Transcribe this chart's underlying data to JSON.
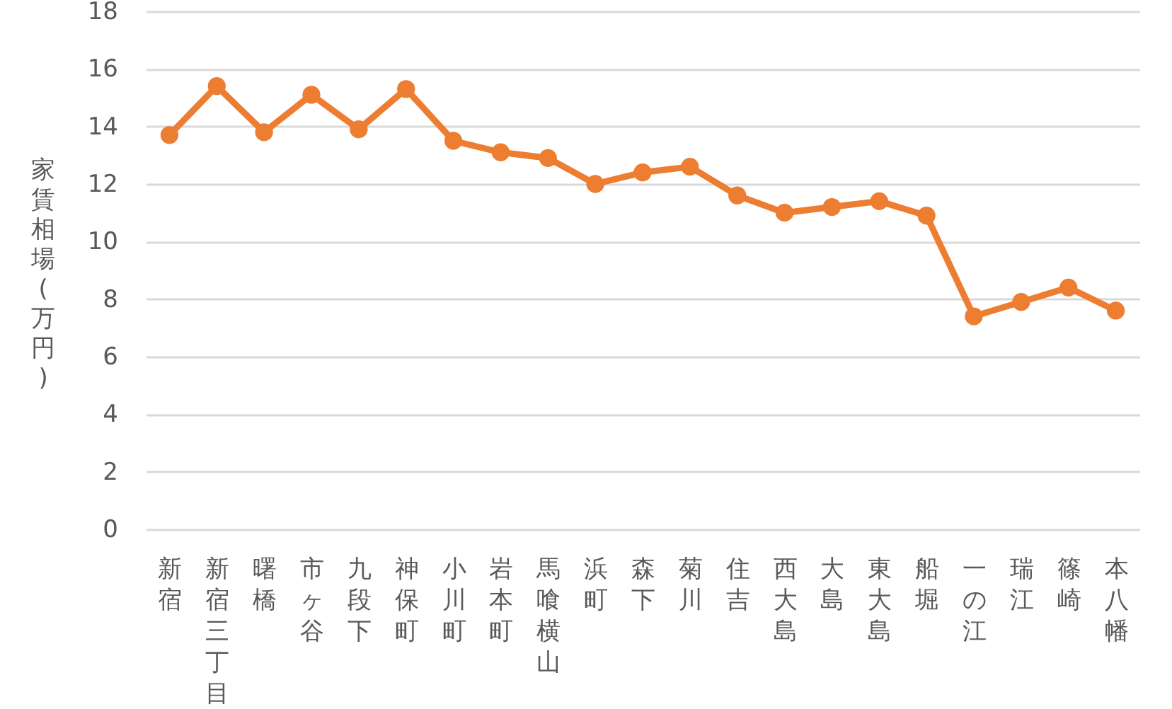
{
  "chart_data": {
    "type": "line",
    "ylabel": "家賃相場(万円)",
    "categories": [
      "新宿",
      "新宿三丁目",
      "曙橋",
      "市ヶ谷",
      "九段下",
      "神保町",
      "小川町",
      "岩本町",
      "馬喰横山",
      "浜町",
      "森下",
      "菊川",
      "住吉",
      "西大島",
      "大島",
      "東大島",
      "船堀",
      "一の江",
      "瑞江",
      "篠崎",
      "本八幡"
    ],
    "series": [
      {
        "color": "#ed7d31",
        "values": [
          13.7,
          15.4,
          13.8,
          15.1,
          13.9,
          15.3,
          13.5,
          13.1,
          12.9,
          12.0,
          12.4,
          12.6,
          11.6,
          11.0,
          11.2,
          11.4,
          10.9,
          7.4,
          7.9,
          8.4,
          7.6
        ]
      }
    ],
    "ylim": [
      0,
      18
    ],
    "yticks": [
      0,
      2,
      4,
      6,
      8,
      10,
      12,
      14,
      16,
      18
    ],
    "grid": "y",
    "marker": "circle",
    "line_style": "solid"
  }
}
